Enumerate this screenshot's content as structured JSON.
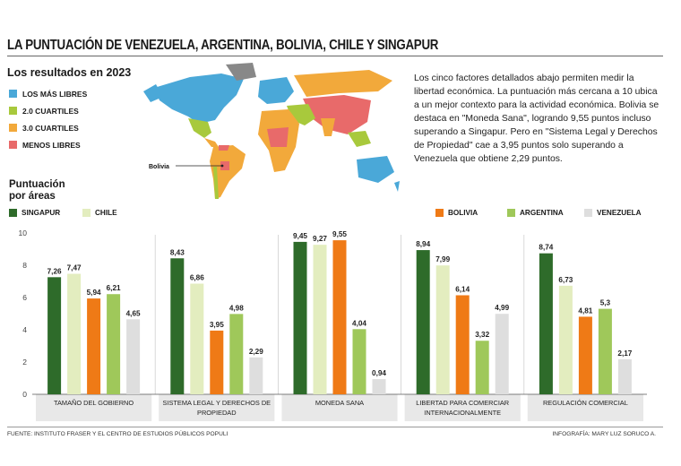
{
  "title": "LA PUNTUACIÓN DE VENEZUELA, ARGENTINA, BOLIVIA, CHILE Y SINGAPUR",
  "map_section": {
    "title": "Los resultados en 2023",
    "legend": [
      {
        "label": "LOS MÁS LIBRES",
        "color": "#4aa8d8"
      },
      {
        "label": "2.0 CUARTILES",
        "color": "#a8c93c"
      },
      {
        "label": "3.0 CUARTILES",
        "color": "#f2a93b"
      },
      {
        "label": "MENOS LIBRES",
        "color": "#e86a6a"
      }
    ],
    "callout": "Bolivia"
  },
  "description": "Los cinco factores detallados abajo permiten medir la libertad económica. La puntuación más cercana a 10 ubica a un mejor contexto para la actividad económica. Bolivia se destaca en \"Moneda Sana\", logrando 9,55 puntos incluso superando a Singapur. Pero en \"Sistema Legal y Derechos de Propiedad\" cae a 3,95 puntos solo superando a Venezuela que obtiene 2,29 puntos.",
  "areas_title": "Puntuación por áreas",
  "chart_data": {
    "type": "bar",
    "categories": [
      "TAMAÑO DEL GOBIERNO",
      "SISTEMA LEGAL Y DERECHOS DE PROPIEDAD",
      "MONEDA SANA",
      "LIBERTAD PARA COMERCIAR INTERNACIONALMENTE",
      "REGULACIÓN COMERCIAL"
    ],
    "series": [
      {
        "name": "SINGAPUR",
        "color": "#2e6b2a",
        "values": [
          7.26,
          8.43,
          9.45,
          8.94,
          8.74
        ],
        "labels": [
          "7,26",
          "8,43",
          "9,45",
          "8,94",
          "8,74"
        ]
      },
      {
        "name": "CHILE",
        "color": "#e3edbf",
        "values": [
          7.47,
          6.86,
          9.27,
          7.99,
          6.73
        ],
        "labels": [
          "7,47",
          "6,86",
          "9,27",
          "7,99",
          "6,73"
        ]
      },
      {
        "name": "BOLIVIA",
        "color": "#ef7a16",
        "values": [
          5.94,
          3.95,
          9.55,
          6.14,
          4.81
        ],
        "labels": [
          "5,94",
          "3,95",
          "9,55",
          "6,14",
          "4,81"
        ]
      },
      {
        "name": "ARGENTINA",
        "color": "#9fc85a",
        "values": [
          6.21,
          4.98,
          4.04,
          3.32,
          5.3
        ],
        "labels": [
          "6,21",
          "4,98",
          "4,04",
          "3,32",
          "5,3"
        ]
      },
      {
        "name": "VENEZUELA",
        "color": "#dedede",
        "values": [
          4.65,
          2.29,
          0.94,
          4.99,
          2.17
        ],
        "labels": [
          "4,65",
          "2,29",
          "0,94",
          "4,99",
          "2,17"
        ]
      }
    ],
    "ylim": [
      0,
      10
    ],
    "yticks": [
      "0",
      "2",
      "4",
      "6",
      "8",
      "10"
    ]
  },
  "footer": {
    "source": "FUENTE: INSTITUTO FRASER Y EL CENTRO DE ESTUDIOS PÚBLICOS POPULI",
    "credit": "INFOGRAFÍA: MARY LUZ SORUCO A."
  }
}
